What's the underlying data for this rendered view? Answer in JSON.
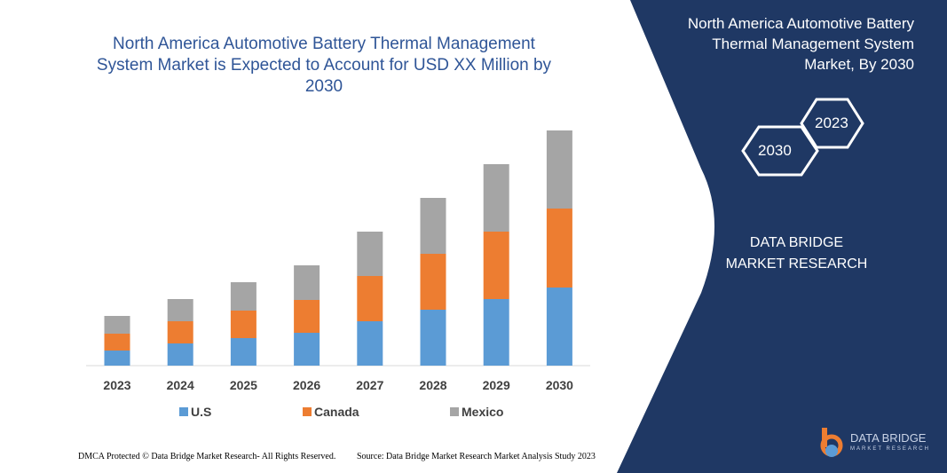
{
  "chart_data": {
    "type": "bar",
    "stacked": true,
    "title": "North America Automotive Battery Thermal Management System Market is Expected to Account for USD XX Million by 2030",
    "categories": [
      "2023",
      "2024",
      "2025",
      "2026",
      "2027",
      "2028",
      "2029",
      "2030"
    ],
    "series": [
      {
        "name": "U.S",
        "color": "#5b9bd5",
        "values": [
          17,
          25,
          31,
          37,
          50,
          63,
          75,
          88
        ]
      },
      {
        "name": "Canada",
        "color": "#ed7d31",
        "values": [
          19,
          25,
          31,
          37,
          51,
          63,
          76,
          89
        ]
      },
      {
        "name": "Mexico",
        "color": "#a5a5a5",
        "values": [
          20,
          25,
          32,
          39,
          50,
          63,
          76,
          88
        ]
      }
    ],
    "ylim": [
      0,
      270
    ],
    "legend": "bottom",
    "grid": false
  },
  "side": {
    "title": "North America Automotive Battery Thermal Management System Market, By 2030",
    "hex_front": "2030",
    "hex_back": "2023",
    "company": "DATA BRIDGE MARKET RESEARCH"
  },
  "footer": {
    "dmca": "DMCA Protected © Data Bridge Market Research- All Rights Reserved.",
    "source": "Source: Data Bridge Market Research Market Analysis Study 2023"
  },
  "logo": {
    "line1": "DATA BRIDGE",
    "line2": "MARKET RESEARCH"
  }
}
